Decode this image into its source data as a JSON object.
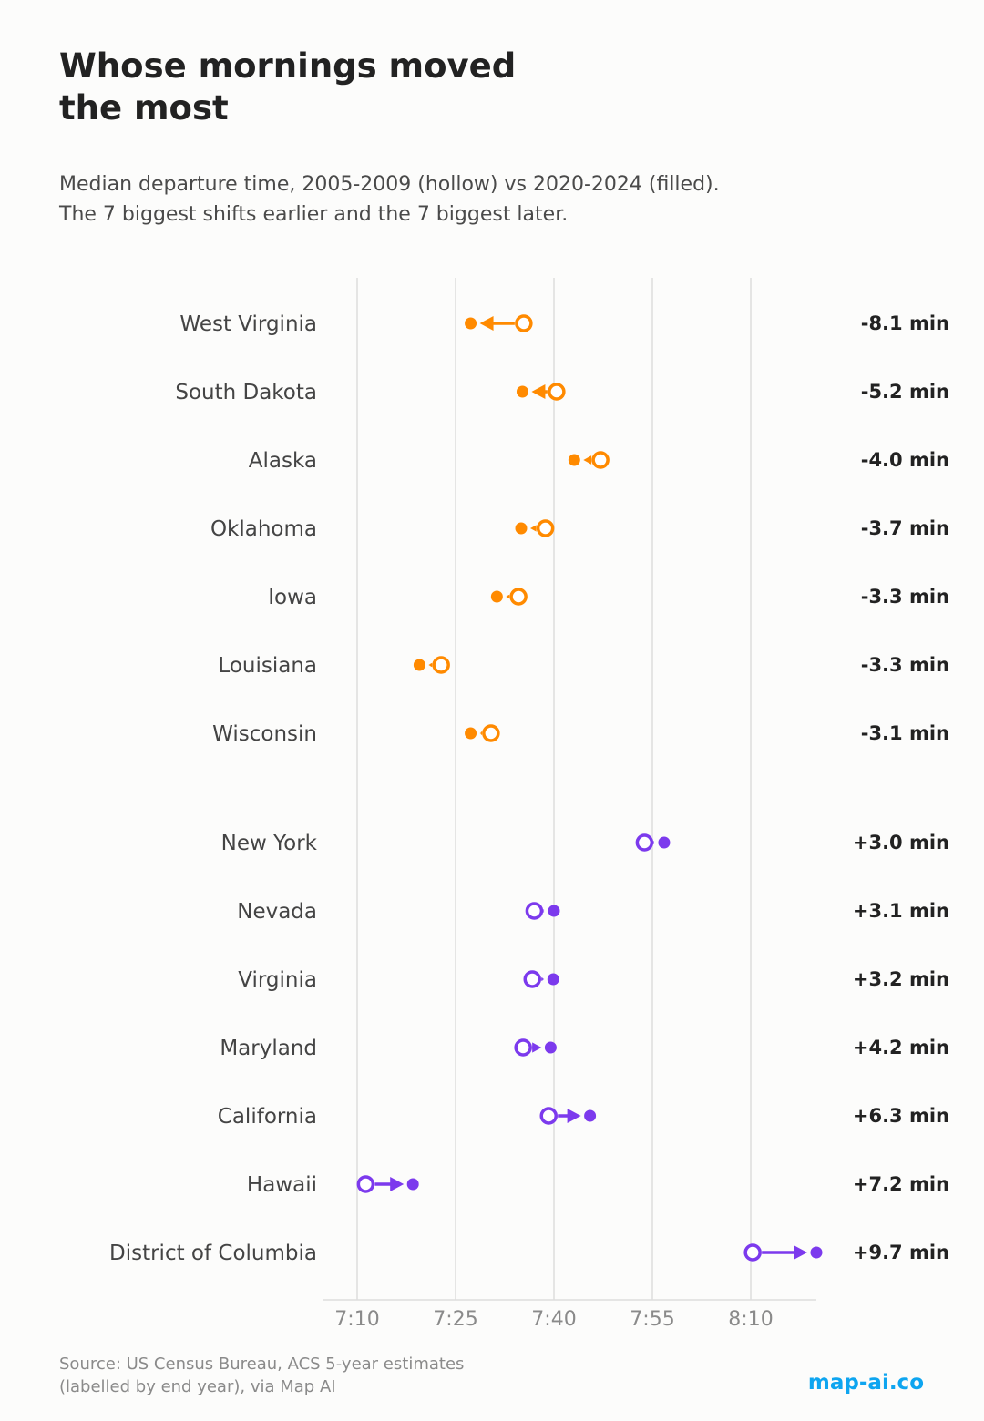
{
  "title_line1": "Whose mornings moved",
  "title_line2": "the most",
  "subtitle_line1": "Median departure time, 2005-2009 (hollow) vs 2020-2024 (filled).",
  "subtitle_line2": "The 7 biggest shifts earlier and the 7 biggest later.",
  "source_line1": "Source: US Census Bureau, ACS 5-year estimates",
  "source_line2": "(labelled by end year), via Map AI",
  "brand": "map-ai.co",
  "colors": {
    "earlier": "#ff8a00",
    "later": "#7c3aed",
    "brand": "#0ea5f0"
  },
  "chart_data": {
    "type": "dumbbell",
    "x_ticks": [
      "7:10",
      "7:25",
      "7:40",
      "7:55",
      "8:10"
    ],
    "grid": true,
    "groups": [
      {
        "direction": "earlier",
        "rows": [
          {
            "label": "West Virginia",
            "before": "7:35.4",
            "after": "7:27.3",
            "change": "-8.1 min"
          },
          {
            "label": "South Dakota",
            "before": "7:40.4",
            "after": "7:35.2",
            "change": "-5.2 min"
          },
          {
            "label": "Alaska",
            "before": "7:47.1",
            "after": "7:43.1",
            "change": "-4.0 min"
          },
          {
            "label": "Oklahoma",
            "before": "7:38.7",
            "after": "7:35.0",
            "change": "-3.7 min"
          },
          {
            "label": "Iowa",
            "before": "7:34.6",
            "after": "7:31.3",
            "change": "-3.3 min"
          },
          {
            "label": "Louisiana",
            "before": "7:22.8",
            "after": "7:19.5",
            "change": "-3.3 min"
          },
          {
            "label": "Wisconsin",
            "before": "7:30.4",
            "after": "7:27.3",
            "change": "-3.1 min"
          }
        ]
      },
      {
        "direction": "later",
        "rows": [
          {
            "label": "New York",
            "before": "7:53.8",
            "after": "7:56.8",
            "change": "+3.0 min"
          },
          {
            "label": "Nevada",
            "before": "7:37.0",
            "after": "7:40.0",
            "change": "+3.1 min"
          },
          {
            "label": "Virginia",
            "before": "7:36.7",
            "after": "7:39.9",
            "change": "+3.2 min"
          },
          {
            "label": "Maryland",
            "before": "7:35.3",
            "after": "7:39.5",
            "change": "+4.2 min"
          },
          {
            "label": "California",
            "before": "7:39.2",
            "after": "7:45.5",
            "change": "+6.3 min"
          },
          {
            "label": "Hawaii",
            "before": "7:11.3",
            "after": "7:18.5",
            "change": "+7.2 min"
          },
          {
            "label": "District of Columbia",
            "before": "8:10.3",
            "after": "8:20.0",
            "change": "+9.7 min"
          }
        ]
      }
    ]
  }
}
